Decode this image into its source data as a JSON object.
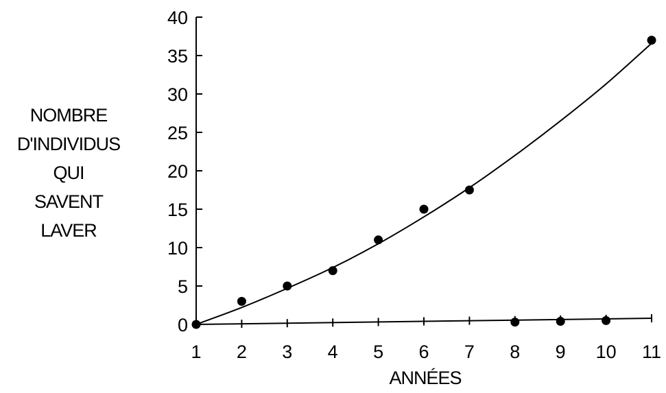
{
  "chart_data": {
    "type": "scatter",
    "title": "",
    "xlabel": "ANNÉES",
    "ylabel_lines": [
      "NOMBRE",
      "D'INDIVIDUS",
      "QUI",
      "SAVENT",
      "LAVER"
    ],
    "x_ticks": [
      1,
      2,
      3,
      4,
      5,
      6,
      7,
      8,
      9,
      10,
      11
    ],
    "y_ticks": [
      0,
      5,
      10,
      15,
      20,
      25,
      30,
      35,
      40
    ],
    "xlim": [
      1,
      11
    ],
    "ylim": [
      0,
      40
    ],
    "grid": false,
    "legend": "none",
    "points": [
      {
        "x": 1,
        "y": 0
      },
      {
        "x": 2,
        "y": 3
      },
      {
        "x": 3,
        "y": 5
      },
      {
        "x": 4,
        "y": 7
      },
      {
        "x": 5,
        "y": 11
      },
      {
        "x": 6,
        "y": 15
      },
      {
        "x": 7,
        "y": 17.5
      },
      {
        "x": 8,
        "y": 0.3
      },
      {
        "x": 9,
        "y": 0.4
      },
      {
        "x": 10,
        "y": 0.5
      },
      {
        "x": 11,
        "y": 37
      }
    ],
    "fit_curve": [
      {
        "x": 1,
        "y": 0
      },
      {
        "x": 2,
        "y": 2.2
      },
      {
        "x": 3,
        "y": 4.7
      },
      {
        "x": 4,
        "y": 7.4
      },
      {
        "x": 5,
        "y": 10.5
      },
      {
        "x": 6,
        "y": 14
      },
      {
        "x": 7,
        "y": 17.8
      },
      {
        "x": 8,
        "y": 22
      },
      {
        "x": 9,
        "y": 26.5
      },
      {
        "x": 10,
        "y": 31.3
      },
      {
        "x": 11,
        "y": 36.6
      }
    ],
    "baseline_curve": [
      {
        "x": 1,
        "y": 0
      },
      {
        "x": 11,
        "y": 0.8
      }
    ],
    "colors": {
      "ink": "#000000",
      "background": "#ffffff"
    }
  }
}
